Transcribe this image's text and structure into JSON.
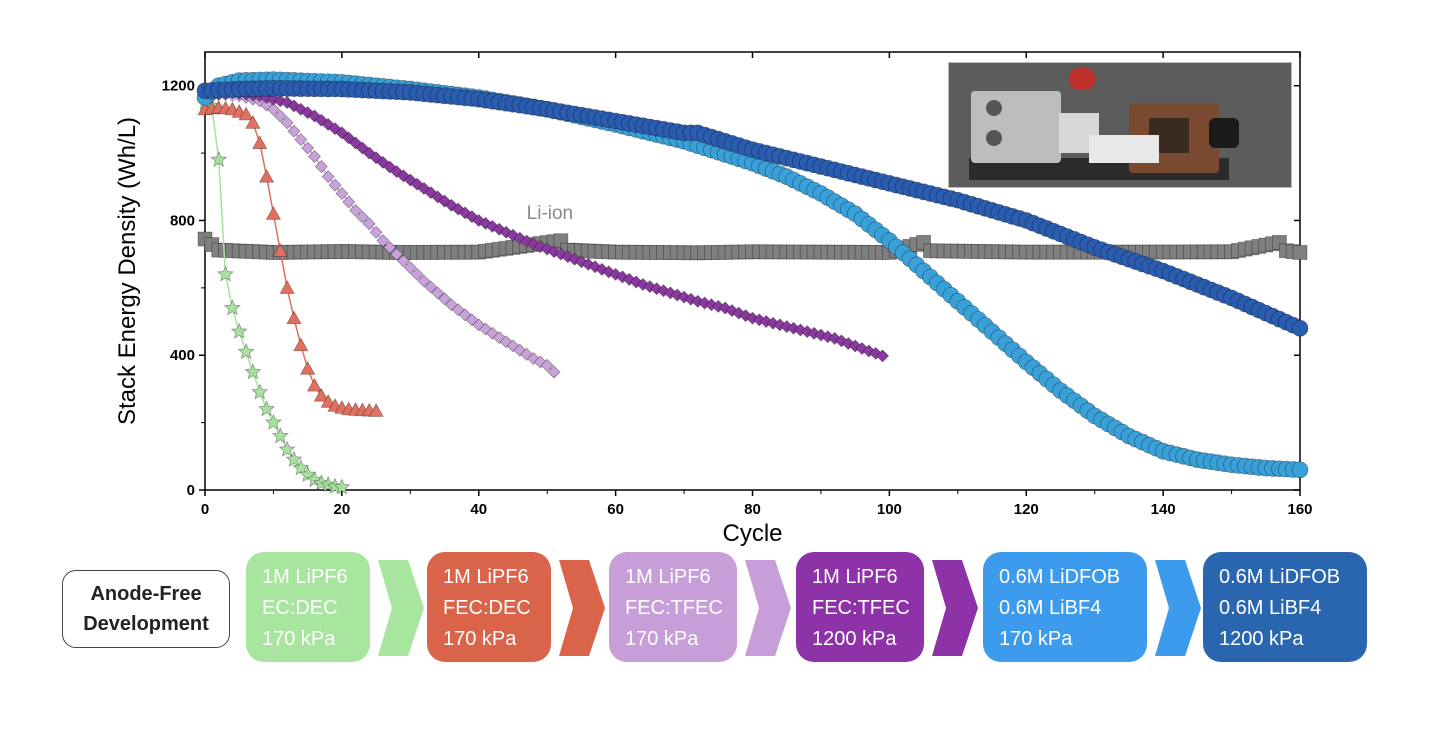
{
  "chart_data": {
    "type": "scatter",
    "xlabel": "Cycle",
    "ylabel": "Stack Energy Density (Wh/L)",
    "xlim": [
      0,
      160
    ],
    "ylim": [
      0,
      1300
    ],
    "xticks": [
      "0",
      "20",
      "40",
      "60",
      "80",
      "100",
      "120",
      "140",
      "160"
    ],
    "yticks": [
      "0",
      "400",
      "800",
      "1200"
    ],
    "annotation": "Li-ion",
    "series": [
      {
        "color": "#7f7f7f",
        "marker": "square",
        "points": [
          [
            0,
            745
          ],
          [
            2,
            712
          ],
          [
            10,
            705
          ],
          [
            20,
            708
          ],
          [
            28,
            705
          ],
          [
            40,
            706
          ],
          [
            52,
            740
          ],
          [
            53,
            712
          ],
          [
            60,
            706
          ],
          [
            72,
            704
          ],
          [
            80,
            707
          ],
          [
            90,
            706
          ],
          [
            100,
            705
          ],
          [
            105,
            735
          ],
          [
            106,
            710
          ],
          [
            120,
            706
          ],
          [
            135,
            706
          ],
          [
            150,
            707
          ],
          [
            157,
            735
          ],
          [
            158,
            710
          ],
          [
            160,
            705
          ]
        ]
      },
      {
        "color": "#a8e0a0",
        "marker": "star",
        "points": [
          [
            0,
            1150
          ],
          [
            1,
            1140
          ],
          [
            2,
            980
          ],
          [
            3,
            640
          ],
          [
            4,
            540
          ],
          [
            5,
            470
          ],
          [
            6,
            410
          ],
          [
            7,
            350
          ],
          [
            8,
            290
          ],
          [
            9,
            240
          ],
          [
            10,
            200
          ],
          [
            11,
            160
          ],
          [
            12,
            120
          ],
          [
            13,
            90
          ],
          [
            14,
            65
          ],
          [
            15,
            45
          ],
          [
            16,
            30
          ],
          [
            17,
            20
          ],
          [
            18,
            15
          ],
          [
            19,
            10
          ],
          [
            20,
            8
          ]
        ]
      },
      {
        "color": "#e07060",
        "marker": "triangle",
        "points": [
          [
            0,
            1130
          ],
          [
            2,
            1135
          ],
          [
            4,
            1130
          ],
          [
            6,
            1115
          ],
          [
            7,
            1090
          ],
          [
            8,
            1030
          ],
          [
            9,
            930
          ],
          [
            10,
            820
          ],
          [
            11,
            710
          ],
          [
            12,
            600
          ],
          [
            13,
            510
          ],
          [
            14,
            430
          ],
          [
            15,
            360
          ],
          [
            16,
            310
          ],
          [
            17,
            280
          ],
          [
            18,
            262
          ],
          [
            19,
            250
          ],
          [
            20,
            244
          ],
          [
            21,
            240
          ],
          [
            22,
            238
          ],
          [
            23,
            237
          ],
          [
            24,
            236
          ],
          [
            25,
            235
          ]
        ]
      },
      {
        "color": "#c8a2d8",
        "marker": "diamond",
        "points": [
          [
            0,
            1160
          ],
          [
            2,
            1175
          ],
          [
            5,
            1170
          ],
          [
            8,
            1155
          ],
          [
            10,
            1130
          ],
          [
            12,
            1090
          ],
          [
            14,
            1040
          ],
          [
            16,
            990
          ],
          [
            18,
            930
          ],
          [
            20,
            880
          ],
          [
            22,
            830
          ],
          [
            24,
            790
          ],
          [
            26,
            740
          ],
          [
            28,
            700
          ],
          [
            30,
            660
          ],
          [
            32,
            620
          ],
          [
            34,
            585
          ],
          [
            36,
            550
          ],
          [
            38,
            520
          ],
          [
            40,
            490
          ],
          [
            42,
            465
          ],
          [
            44,
            440
          ],
          [
            46,
            415
          ],
          [
            48,
            390
          ],
          [
            50,
            370
          ],
          [
            51,
            350
          ]
        ]
      },
      {
        "color": "#8a3a9e",
        "marker": "diamond",
        "points": [
          [
            0,
            1170
          ],
          [
            4,
            1180
          ],
          [
            8,
            1170
          ],
          [
            12,
            1150
          ],
          [
            16,
            1110
          ],
          [
            20,
            1060
          ],
          [
            24,
            1000
          ],
          [
            28,
            945
          ],
          [
            32,
            895
          ],
          [
            36,
            845
          ],
          [
            40,
            800
          ],
          [
            44,
            765
          ],
          [
            48,
            730
          ],
          [
            52,
            700
          ],
          [
            56,
            670
          ],
          [
            60,
            640
          ],
          [
            64,
            610
          ],
          [
            68,
            585
          ],
          [
            72,
            560
          ],
          [
            76,
            540
          ],
          [
            80,
            510
          ],
          [
            84,
            490
          ],
          [
            88,
            470
          ],
          [
            92,
            450
          ],
          [
            96,
            420
          ],
          [
            99,
            398
          ]
        ]
      },
      {
        "color": "#3aa0d8",
        "marker": "circle",
        "points": [
          [
            0,
            1165
          ],
          [
            2,
            1200
          ],
          [
            5,
            1215
          ],
          [
            10,
            1218
          ],
          [
            20,
            1210
          ],
          [
            30,
            1190
          ],
          [
            40,
            1165
          ],
          [
            50,
            1130
          ],
          [
            60,
            1085
          ],
          [
            70,
            1035
          ],
          [
            80,
            970
          ],
          [
            85,
            930
          ],
          [
            90,
            880
          ],
          [
            95,
            820
          ],
          [
            100,
            740
          ],
          [
            105,
            650
          ],
          [
            110,
            560
          ],
          [
            115,
            470
          ],
          [
            120,
            380
          ],
          [
            125,
            295
          ],
          [
            130,
            220
          ],
          [
            135,
            160
          ],
          [
            140,
            115
          ],
          [
            145,
            90
          ],
          [
            150,
            75
          ],
          [
            155,
            65
          ],
          [
            160,
            60
          ]
        ]
      },
      {
        "color": "#2a5cb0",
        "marker": "circle",
        "points": [
          [
            0,
            1185
          ],
          [
            5,
            1190
          ],
          [
            10,
            1192
          ],
          [
            20,
            1190
          ],
          [
            30,
            1180
          ],
          [
            40,
            1160
          ],
          [
            50,
            1130
          ],
          [
            60,
            1095
          ],
          [
            70,
            1060
          ],
          [
            72,
            1060
          ],
          [
            80,
            1010
          ],
          [
            90,
            960
          ],
          [
            100,
            910
          ],
          [
            110,
            860
          ],
          [
            120,
            800
          ],
          [
            130,
            720
          ],
          [
            140,
            650
          ],
          [
            150,
            570
          ],
          [
            160,
            480
          ]
        ]
      }
    ]
  },
  "inset_photo": {
    "name": "cell-fixture-photo"
  },
  "timeline": {
    "start_label": [
      "Anode-Free",
      "Development"
    ],
    "stages": [
      {
        "lines": [
          "1M LiPF6",
          "EC:DEC",
          "170 kPa"
        ],
        "color": "#a8e6a0"
      },
      {
        "lines": [
          "1M LiPF6",
          "FEC:DEC",
          "170 kPa"
        ],
        "color": "#d9644a"
      },
      {
        "lines": [
          "1M LiPF6",
          "FEC:TFEC",
          "170 kPa"
        ],
        "color": "#c89ed8"
      },
      {
        "lines": [
          "1M LiPF6",
          "FEC:TFEC",
          "1200 kPa"
        ],
        "color": "#8e32a8"
      },
      {
        "lines": [
          "0.6M LiDFOB",
          "0.6M LiBF4",
          "170 kPa"
        ],
        "color": "#3c9bec"
      },
      {
        "lines": [
          "0.6M LiDFOB",
          "0.6M LiBF4",
          "1200 kPa"
        ],
        "color": "#2a66b0"
      }
    ]
  }
}
